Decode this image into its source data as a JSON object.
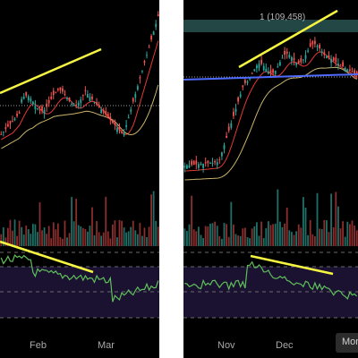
{
  "chart_data": [
    {
      "type": "candlestick",
      "title": "",
      "x_ticks": [
        "Feb",
        "Mar"
      ],
      "annotations": [
        "trendline-price",
        "trendline-oscillator"
      ],
      "colors": {
        "up": "#26a69a",
        "down": "#ef5350",
        "trend": "#f5f542",
        "ma_fast": "#e53935",
        "ma_slow": "#c8b56a"
      }
    },
    {
      "type": "candlestick",
      "title": "",
      "x_ticks": [
        "Nov",
        "Dec",
        "Mon"
      ],
      "price_label": "1 (109,458)",
      "annotations": [
        "trendline-price",
        "trendline-oscillator",
        "horizontal-support"
      ],
      "colors": {
        "up": "#26a69a",
        "down": "#ef5350",
        "trend": "#f5f542",
        "support": "#4f6bff",
        "resistance_band": "#3a6f6a"
      }
    }
  ]
}
